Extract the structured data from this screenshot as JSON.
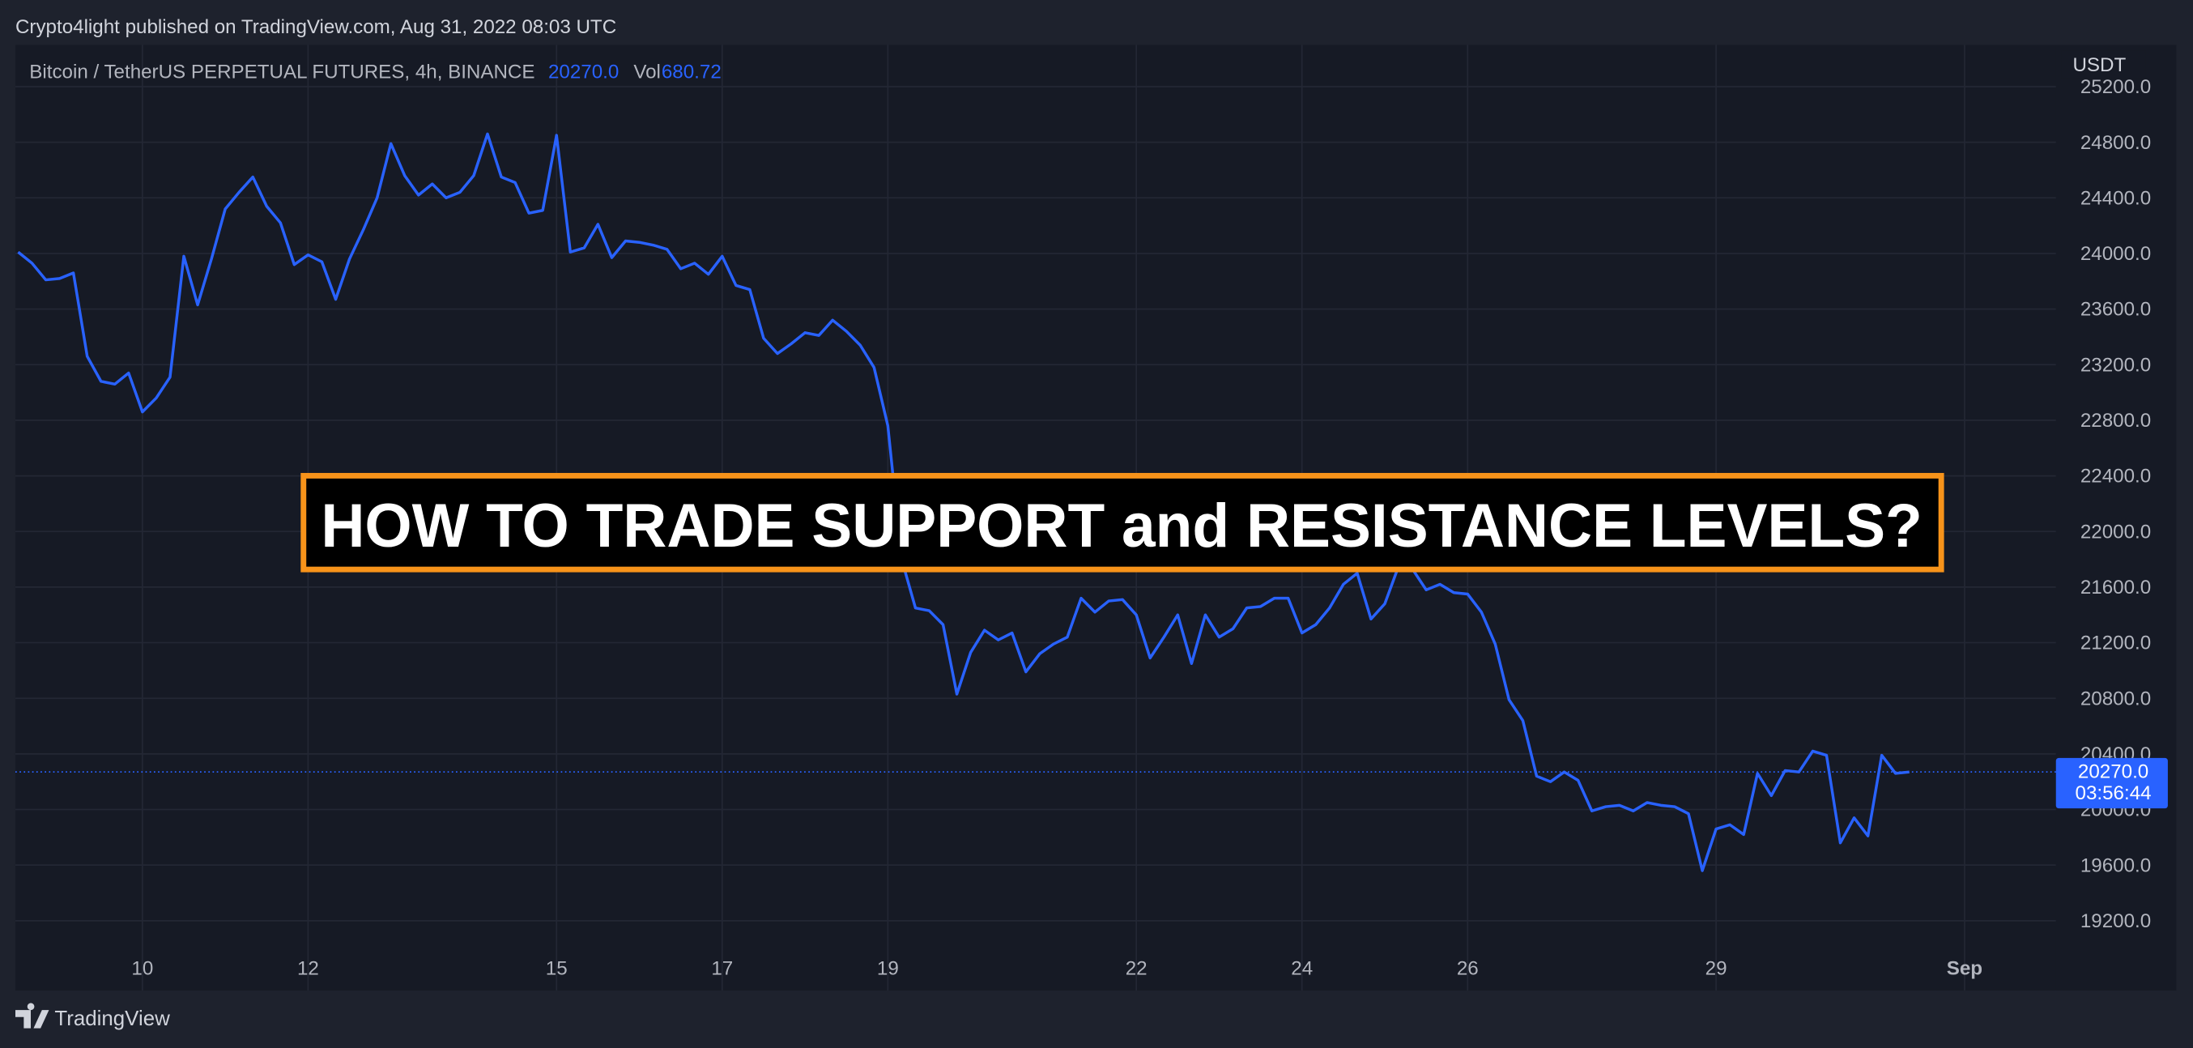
{
  "header": "Crypto4light published on TradingView.com, Aug 31, 2022 08:03 UTC",
  "footer": "TradingView",
  "chart_data": {
    "type": "line",
    "symbol": "Bitcoin / TetherUS PERPETUAL FUTURES, 4h, BINANCE",
    "last_price": {
      "value": 20270,
      "label": "20270.0"
    },
    "volume_label": "Vol",
    "volume": 680.72,
    "countdown": "03:56:44",
    "axis_unit": "USDT",
    "annotation": "HOW TO TRADE SUPPORT and RESISTANCE LEVELS?",
    "categories": [
      null,
      null,
      null,
      null,
      null,
      null,
      null,
      null,
      null,
      "10",
      null,
      null,
      null,
      null,
      null,
      null,
      null,
      null,
      null,
      null,
      null,
      "12",
      null,
      null,
      null,
      null,
      null,
      null,
      null,
      null,
      null,
      null,
      null,
      null,
      null,
      null,
      null,
      null,
      null,
      "15",
      null,
      null,
      null,
      null,
      null,
      null,
      null,
      null,
      null,
      null,
      null,
      "17",
      null,
      null,
      null,
      null,
      null,
      null,
      null,
      null,
      null,
      null,
      null,
      "19",
      null,
      null,
      null,
      null,
      null,
      null,
      null,
      null,
      null,
      null,
      null,
      null,
      null,
      null,
      null,
      null,
      null,
      "22",
      null,
      null,
      null,
      null,
      null,
      null,
      null,
      null,
      null,
      null,
      null,
      "24",
      null,
      null,
      null,
      null,
      null,
      null,
      null,
      null,
      null,
      null,
      null,
      "26",
      null,
      null,
      null,
      null,
      null,
      null,
      null,
      null,
      null,
      null,
      null,
      null,
      null,
      null,
      null,
      null,
      null,
      "29",
      null,
      null,
      null,
      null,
      null,
      null,
      null,
      null,
      null,
      null,
      null,
      null,
      null,
      null,
      null,
      null,
      null,
      "Sep"
    ],
    "series": [
      {
        "name": "BTCUSDT",
        "color": "#2962ff",
        "values": [
          24010,
          23930,
          23810,
          23820,
          23860,
          23260,
          23080,
          23060,
          23140,
          22860,
          22960,
          23110,
          23980,
          23630,
          23960,
          24320,
          24440,
          24550,
          24340,
          24220,
          23920,
          23990,
          23940,
          23670,
          23960,
          24170,
          24400,
          24790,
          24560,
          24420,
          24500,
          24400,
          24440,
          24560,
          24860,
          24550,
          24510,
          24290,
          24310,
          24850,
          24010,
          24040,
          24210,
          23970,
          24090,
          24080,
          24060,
          24030,
          23890,
          23930,
          23850,
          23980,
          23770,
          23740,
          23390,
          23280,
          23350,
          23430,
          23410,
          23520,
          23440,
          23340,
          23180,
          22760,
          21800,
          21450,
          21430,
          21330,
          20830,
          21130,
          21290,
          21220,
          21270,
          20990,
          21120,
          21190,
          21240,
          21520,
          21420,
          21500,
          21510,
          21400,
          21090,
          21240,
          21400,
          21050,
          21400,
          21240,
          21300,
          21450,
          21460,
          21520,
          21520,
          21270,
          21330,
          21450,
          21620,
          21700,
          21370,
          21480,
          21750,
          21730,
          21580,
          21620,
          21560,
          21550,
          21420,
          21190,
          20790,
          20640,
          20240,
          20200,
          20270,
          20210,
          19990,
          20020,
          20030,
          19990,
          20050,
          20030,
          20020,
          19970,
          19560,
          19860,
          19890,
          19820,
          20260,
          20100,
          20280,
          20270,
          20420,
          20390,
          19760,
          19940,
          19810,
          20390,
          20260,
          20270,
          null,
          null,
          null,
          null
        ]
      }
    ],
    "ylim": [
      19000,
      25500
    ],
    "yticks": [
      {
        "value": 19200,
        "label": "19200.0"
      },
      {
        "value": 19600,
        "label": "19600.0"
      },
      {
        "value": 20000,
        "label": "20000.0"
      },
      {
        "value": 20400,
        "label": "20400.0"
      },
      {
        "value": 20800,
        "label": "20800.0"
      },
      {
        "value": 21200,
        "label": "21200.0"
      },
      {
        "value": 21600,
        "label": "21600.0"
      },
      {
        "value": 22000,
        "label": "22000.0"
      },
      {
        "value": 22400,
        "label": "22400.0"
      },
      {
        "value": 22800,
        "label": "22800.0"
      },
      {
        "value": 23200,
        "label": "23200.0"
      },
      {
        "value": 23600,
        "label": "23600.0"
      },
      {
        "value": 24000,
        "label": "24000.0"
      },
      {
        "value": 24400,
        "label": "24400.0"
      },
      {
        "value": 24800,
        "label": "24800.0"
      },
      {
        "value": 25200,
        "label": "25200.0"
      }
    ],
    "grid": true
  }
}
